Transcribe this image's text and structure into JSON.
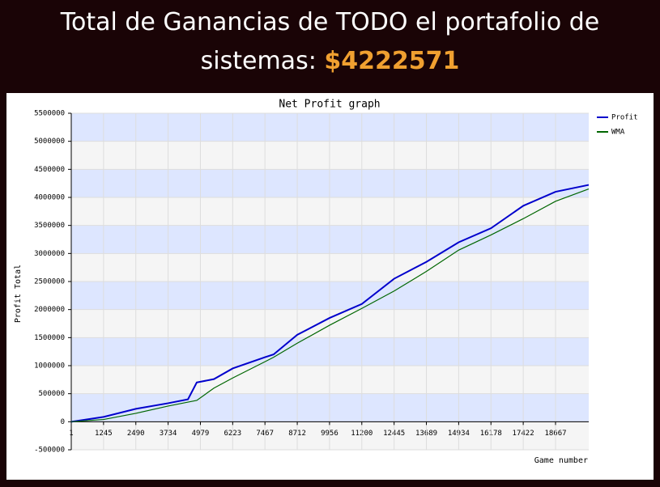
{
  "header": {
    "text": "Total de Ganancias de TODO el portafolio de sistemas:",
    "amount": "$4222571"
  },
  "chart_data": {
    "type": "line",
    "title": "Net Profit graph",
    "x_label": "Game number",
    "y_label": "Profit Total",
    "x": [
      1,
      1245,
      2490,
      3734,
      4500,
      4838,
      5500,
      6223,
      7467,
      7800,
      8712,
      9956,
      11200,
      12445,
      13689,
      14934,
      16178,
      17422,
      18667,
      19947
    ],
    "series": [
      {
        "name": "Profit",
        "color": "#0000cc",
        "values": [
          0,
          86000,
          230000,
          330000,
          400000,
          700000,
          760000,
          950000,
          1150000,
          1200000,
          1550000,
          1850000,
          2100000,
          2550000,
          2850000,
          3200000,
          3450000,
          3850000,
          4100000,
          4222571
        ]
      },
      {
        "name": "WMA",
        "color": "#006600",
        "values": [
          0,
          40000,
          150000,
          280000,
          350000,
          380000,
          600000,
          780000,
          1070000,
          1150000,
          1400000,
          1720000,
          2020000,
          2330000,
          2680000,
          3060000,
          3330000,
          3620000,
          3930000,
          4150000
        ]
      }
    ],
    "xlim": [
      1,
      19947
    ],
    "xticks": [
      1,
      1245,
      2490,
      3734,
      4979,
      6223,
      7467,
      8712,
      9956,
      11200,
      12445,
      13689,
      14934,
      16178,
      17422,
      18667
    ],
    "ylim": [
      -500000,
      5500000
    ],
    "yticks": [
      -500000,
      0,
      500000,
      1000000,
      1500000,
      2000000,
      2500000,
      3000000,
      3500000,
      4000000,
      4500000,
      5000000,
      5500000
    ],
    "grid": true,
    "legend": "top-right",
    "band_colors": [
      "#f5f5f5",
      "#dde6ff"
    ]
  }
}
